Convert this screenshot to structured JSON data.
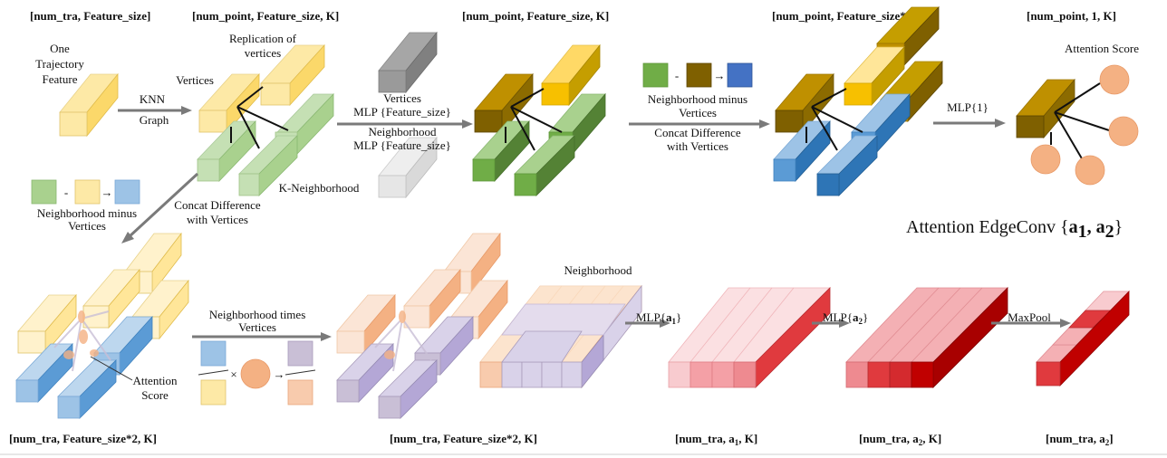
{
  "dims": {
    "d1": "[num_tra, Feature_size]",
    "d2": "[num_point, Feature_size, K]",
    "d3": "[num_point, Feature_size, K]",
    "d4": "[num_point, Feature_size*2, K]",
    "d5": "[num_point, 1, K]",
    "d6": "[num_tra, Feature_size*2, K]",
    "d7": "[num_tra, Feature_size*2, K]",
    "d8_pre": "[num_tra, a",
    "d8_sub": "1",
    "d8_post": ", K]",
    "d9_pre": "[num_tra, a",
    "d9_sub": "2",
    "d9_post": ", K]",
    "d10_pre": "[num_tra, a",
    "d10_sub": "2",
    "d10_post": "]"
  },
  "labels": {
    "traj_1": "One",
    "traj_2": "Trajectory",
    "traj_3": "Feature",
    "knn_1": "KNN",
    "knn_2": "Graph",
    "vertices": "Vertices",
    "replication_1": "Replication of",
    "replication_2": "vertices",
    "k_neighborhood": "K-Neighborhood",
    "mlp_vert_1": "Vertices",
    "mlp_vert_2": "MLP {Feature_size}",
    "mlp_nb_1": "Neighborhood",
    "mlp_nb_2": "MLP {Feature_size}",
    "minus_sign": "-",
    "minus_arrow": "→",
    "nb_minus_1": "Neighborhood minus",
    "nb_minus_2": "Vertices",
    "concat_1": "Concat Difference",
    "concat_2": "with Vertices",
    "mlp1": "MLP{1}",
    "attention_score": "Attention Score",
    "title_main": "Attention EdgeConv ",
    "title_brace_open": "{",
    "title_a": "a",
    "title_sub1": "1",
    "title_comma": ", a",
    "title_sub2": "2",
    "title_brace_close": "}",
    "left_minus_sign": "-",
    "left_minus_arrow": "→",
    "left_nb_minus_1": "Neighborhood minus",
    "left_nb_minus_2": "Vertices",
    "left_concat_1": "Concat Difference",
    "left_concat_2": "with Vertices",
    "att_score_1": "Attention",
    "att_score_2": "Score",
    "times_1": "Neighborhood times",
    "times_2": "Vertices",
    "times_sign": "×",
    "times_arrow": "→",
    "neighborhood": "Neighborhood",
    "mlp_a1_pre": "MLP{",
    "mlp_a1_a": "a",
    "mlp_a1_sub": "1",
    "mlp_a1_post": "}",
    "mlp_a2_pre": "MLP{",
    "mlp_a2_a": "a",
    "mlp_a2_sub": "2",
    "mlp_a2_post": "}",
    "maxpool": "MaxPool"
  },
  "colors": {
    "light_yellow": "#fde9a6",
    "yellow": "#fbd86a",
    "gold": "#f7c000",
    "olive": "#7f6000",
    "light_green": "#a9d18e",
    "green": "#70ad47",
    "dark_green": "#548235",
    "gray": "#808080",
    "light_gray": "#d9d9d9",
    "blue": "#2e75b6",
    "light_blue": "#9dc3e6",
    "mid_blue": "#5b9bd5",
    "orange_circle": "#f4b183",
    "lavender": "#c9bfd6",
    "peach": "#f8cbad",
    "light_orange": "#fbe5d6",
    "orange": "#f4b183",
    "light_pink": "#f8cbcf",
    "pink": "#f4a0a6",
    "red": "#e03a3e",
    "dark_red": "#c00000",
    "arrow_gray": "#7a7a7a"
  }
}
